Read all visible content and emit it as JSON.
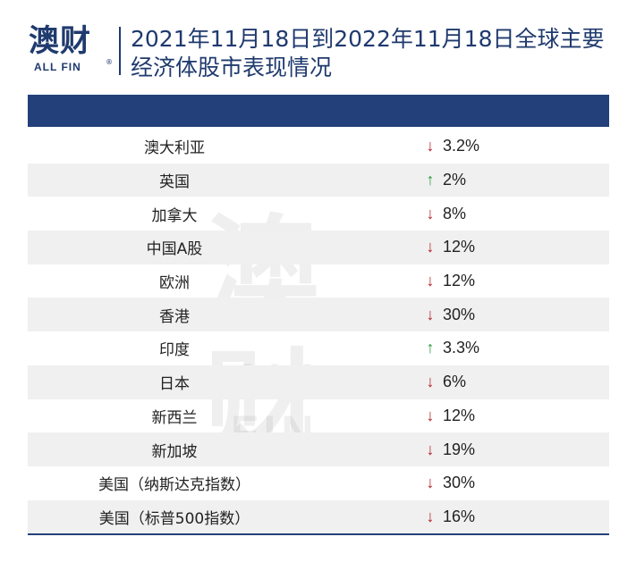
{
  "logo": {
    "main": "澳财",
    "sub": "ALL FIN",
    "mark": "®"
  },
  "title": "2021年11月18日到2022年11月18日全球主要经济体股市表现情况",
  "rows": [
    {
      "name": "澳大利亚",
      "direction": "down",
      "value": "3.2%"
    },
    {
      "name": "英国",
      "direction": "up",
      "value": "2%"
    },
    {
      "name": "加拿大",
      "direction": "down",
      "value": "8%"
    },
    {
      "name": "中国A股",
      "direction": "down",
      "value": "12%"
    },
    {
      "name": "欧洲",
      "direction": "down",
      "value": "12%"
    },
    {
      "name": "香港",
      "direction": "down",
      "value": "30%"
    },
    {
      "name": "印度",
      "direction": "up",
      "value": "3.3%"
    },
    {
      "name": "日本",
      "direction": "down",
      "value": "6%"
    },
    {
      "name": "新西兰",
      "direction": "down",
      "value": "12%"
    },
    {
      "name": "新加坡",
      "direction": "down",
      "value": "19%"
    },
    {
      "name": "美国（纳斯达克指数）",
      "direction": "down",
      "value": "30%"
    },
    {
      "name": "美国（标普500指数）",
      "direction": "down",
      "value": "16%"
    }
  ],
  "arrows": {
    "down": "↓",
    "up": "↑"
  },
  "colors": {
    "header": "#23407a",
    "down": "#b51f25",
    "up": "#2c9a3b"
  }
}
